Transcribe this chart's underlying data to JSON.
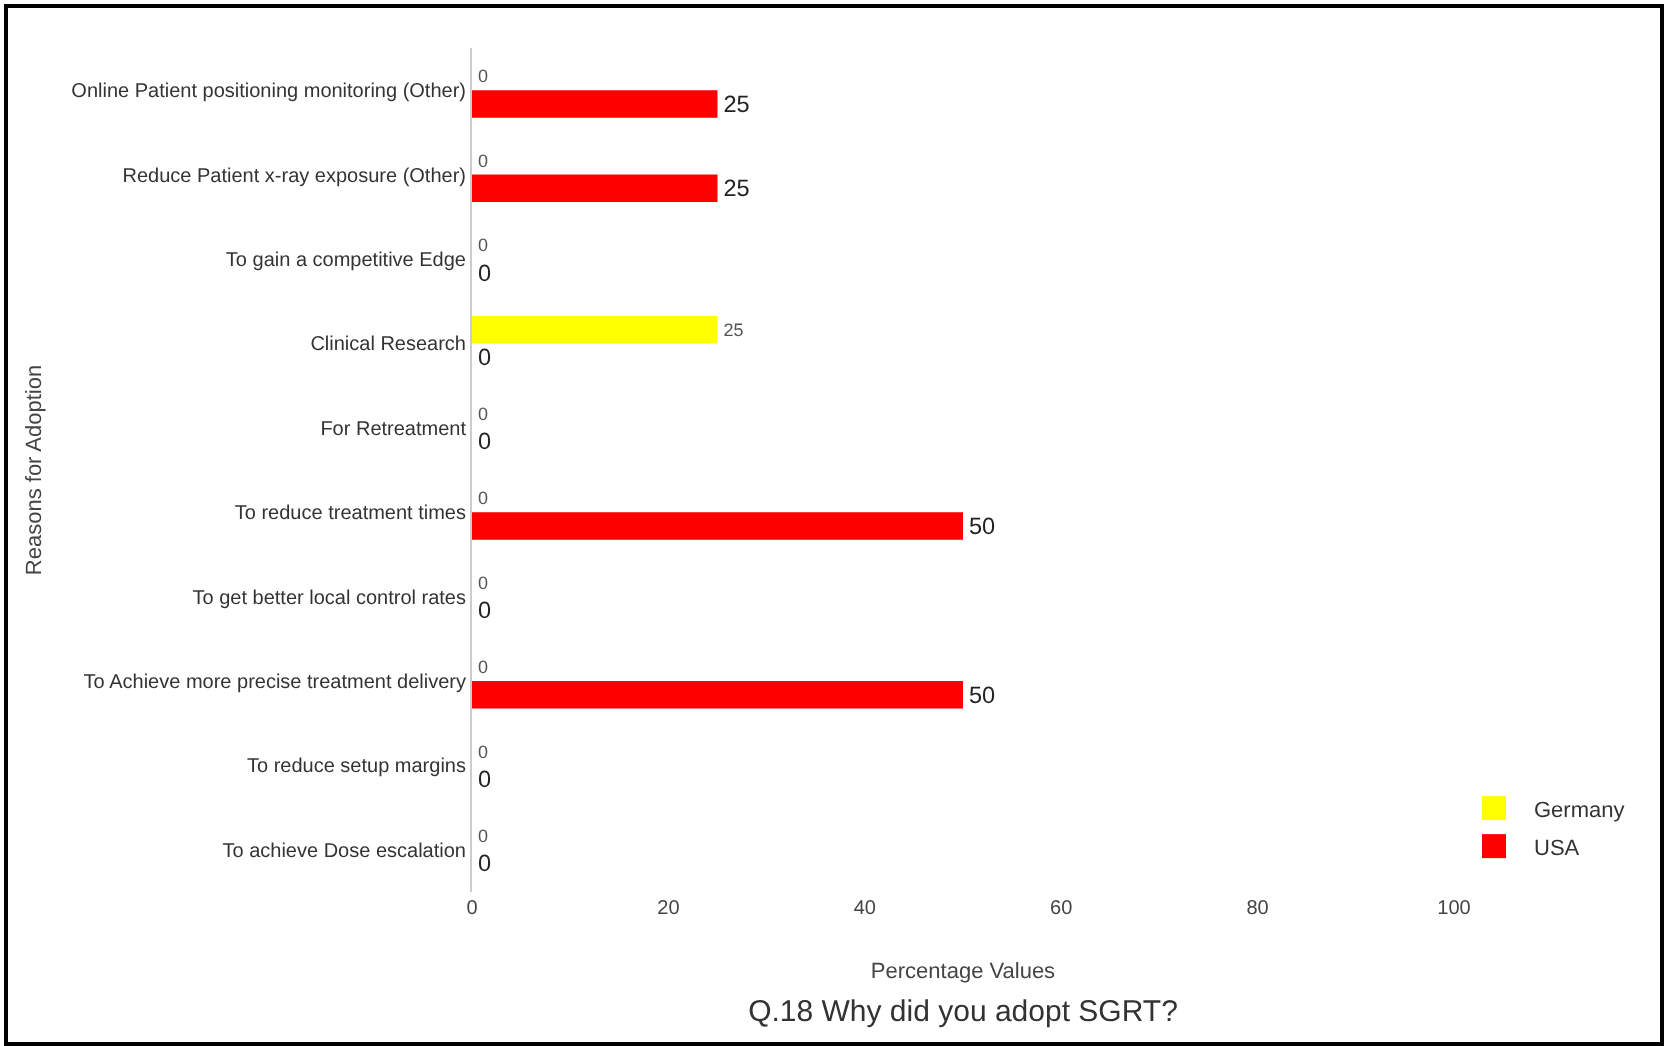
{
  "chart_data": {
    "type": "bar",
    "orientation": "horizontal",
    "title": "Q.18 Why did you adopt SGRT?",
    "xlabel": "Percentage Values",
    "ylabel": "Reasons for Adoption",
    "categories": [
      "Online Patient positioning monitoring (Other)",
      "Reduce Patient x-ray exposure (Other)",
      "To gain a competitive Edge",
      "Clinical Research",
      "For Retreatment",
      "To reduce treatment times",
      "To get better local control rates",
      "To Achieve more precise treatment delivery",
      "To reduce setup margins",
      "To achieve Dose escalation"
    ],
    "series": [
      {
        "name": "Germany",
        "color": "#ffff00",
        "values": [
          0,
          0,
          0,
          25,
          0,
          0,
          0,
          0,
          0,
          0
        ]
      },
      {
        "name": "USA",
        "color": "#ff0000",
        "values": [
          25,
          25,
          0,
          0,
          0,
          50,
          0,
          50,
          0,
          0
        ]
      }
    ],
    "xlim": [
      0,
      100
    ],
    "xticks": [
      0,
      20,
      40,
      60,
      80,
      100
    ],
    "data_labels": true,
    "grid": false,
    "legend": "bottom right"
  }
}
